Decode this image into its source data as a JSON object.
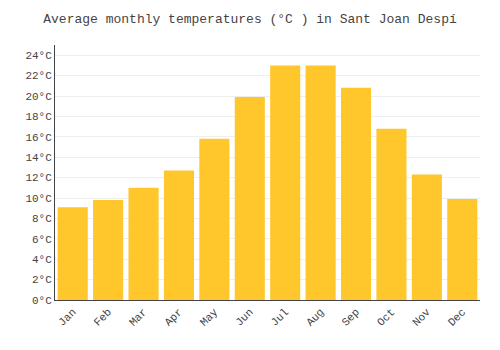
{
  "chart_data": {
    "type": "bar",
    "title": "Average monthly temperatures (°C ) in Sant Joan Despí",
    "categories": [
      "Jan",
      "Feb",
      "Mar",
      "Apr",
      "May",
      "Jun",
      "Jul",
      "Aug",
      "Sep",
      "Oct",
      "Nov",
      "Dec"
    ],
    "values": [
      9.1,
      9.8,
      11.0,
      12.7,
      15.8,
      19.9,
      23.0,
      23.0,
      20.8,
      16.8,
      12.3,
      9.9
    ],
    "color": "#FFC72C",
    "ylim": [
      0,
      25
    ],
    "yticks": [
      {
        "value": 0,
        "label": "0°C"
      },
      {
        "value": 2,
        "label": "2°C"
      },
      {
        "value": 4,
        "label": "4°C"
      },
      {
        "value": 6,
        "label": "6°C"
      },
      {
        "value": 8,
        "label": "8°C"
      },
      {
        "value": 10,
        "label": "10°C"
      },
      {
        "value": 12,
        "label": "12°C"
      },
      {
        "value": 14,
        "label": "14°C"
      },
      {
        "value": 16,
        "label": "16°C"
      },
      {
        "value": 18,
        "label": "18°C"
      },
      {
        "value": 20,
        "label": "20°C"
      },
      {
        "value": 22,
        "label": "22°C"
      },
      {
        "value": 24,
        "label": "24°C"
      }
    ],
    "grid": true
  }
}
